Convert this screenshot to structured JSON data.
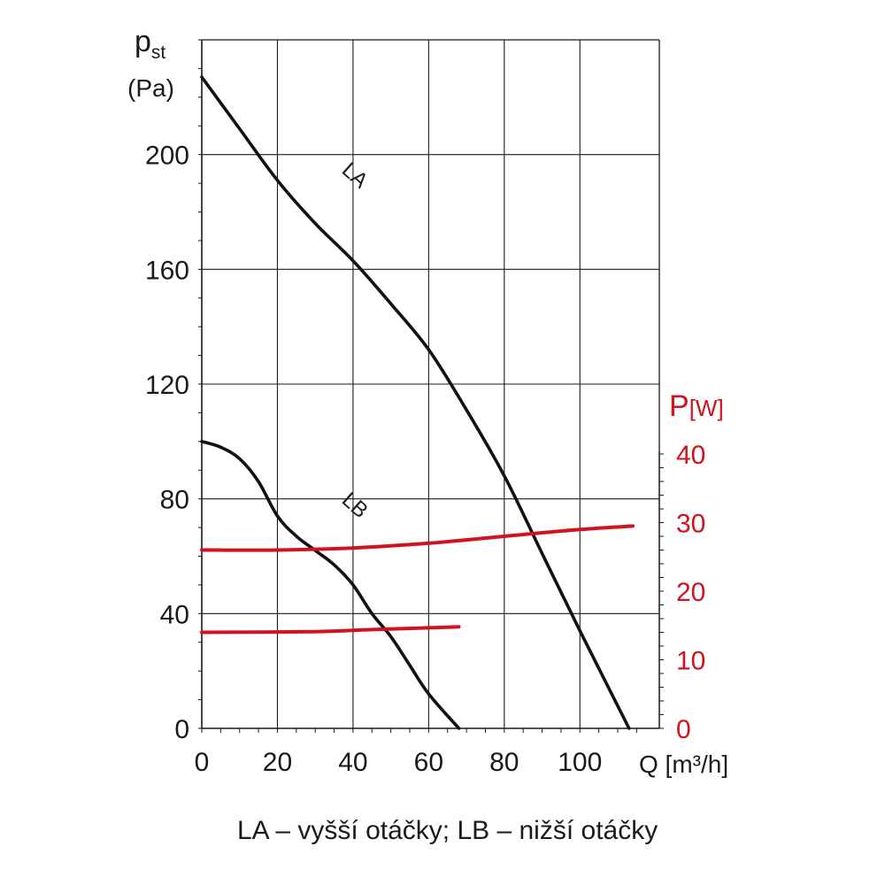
{
  "chart_data": {
    "type": "line",
    "y_title_main": "p",
    "y_title_sub": "st",
    "y_unit": "(Pa)",
    "y2_title_main": "P",
    "y2_title_unit": "[W]",
    "x_title": "Q [m³/h]",
    "xlim": [
      0,
      121
    ],
    "ylim": [
      0,
      240
    ],
    "y2lim": [
      0,
      40
    ],
    "x_ticks": [
      0,
      20,
      40,
      60,
      80,
      100
    ],
    "x_tick_labels": [
      "0",
      "20",
      "40",
      "60",
      "80",
      "100"
    ],
    "y_ticks": [
      0,
      40,
      80,
      120,
      160,
      200
    ],
    "y_tick_labels": [
      "0",
      "40",
      "80",
      "120",
      "160",
      "200"
    ],
    "y2_ticks": [
      0,
      10,
      20,
      30,
      40
    ],
    "y2_tick_labels": [
      "0",
      "10",
      "20",
      "30",
      "40"
    ],
    "grid": true,
    "colors": {
      "pressure": "#111111",
      "power": "#d0131e",
      "grid": "#1a1a1a"
    },
    "series": [
      {
        "name": "LA",
        "axis": "left",
        "x": [
          0,
          10,
          20,
          30,
          40,
          50,
          60,
          70,
          80,
          90,
          100,
          113
        ],
        "y": [
          227,
          209,
          191,
          176,
          163,
          148,
          132,
          111,
          88,
          61,
          34,
          0
        ]
      },
      {
        "name": "LB",
        "axis": "left",
        "x": [
          0,
          5,
          10,
          15,
          20,
          25,
          30,
          35,
          40,
          45,
          50,
          55,
          60,
          68
        ],
        "y": [
          100,
          98,
          94,
          86,
          74,
          67,
          62,
          57,
          50,
          40,
          32,
          22,
          12,
          0
        ]
      },
      {
        "axis": "right",
        "x": [
          0,
          20,
          40,
          60,
          80,
          100,
          114
        ],
        "y": [
          26,
          26,
          26.3,
          27,
          28,
          29,
          29.5
        ]
      },
      {
        "axis": "right",
        "x": [
          0,
          30,
          45,
          68
        ],
        "y": [
          14,
          14.1,
          14.4,
          14.8
        ]
      }
    ],
    "caption": "LA – vyšší otáčky; LB – nižší otáčky"
  }
}
